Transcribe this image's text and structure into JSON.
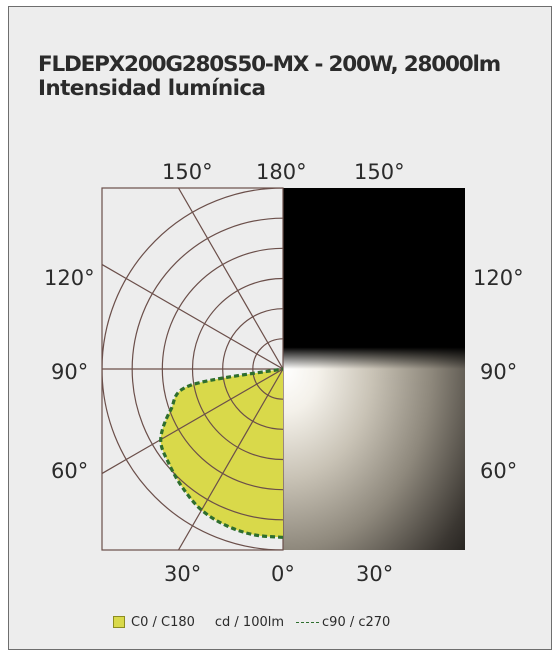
{
  "title": {
    "line1": "FLDEPX200G280S50-MX - 200W, 28000lm",
    "line2": "Intensidad lumínica"
  },
  "colors": {
    "background": "#ededed",
    "grid": "#6b4f4a",
    "c0_fill": "#d9d94a",
    "c90_line": "#2e6e2e",
    "beam_panel": "#000000"
  },
  "chart_data": {
    "type": "polar",
    "unit": "cd / 100lm",
    "angle_labels": {
      "top": [
        "150°",
        "180°",
        "150°"
      ],
      "left": [
        "120°",
        "90°",
        "60°"
      ],
      "right": [
        "120°",
        "90°",
        "60°"
      ],
      "bottom": [
        "30°",
        "0°",
        "30°"
      ]
    },
    "series": [
      {
        "name": "C0 / C180",
        "style": "filled",
        "angles_deg": [
          0,
          10,
          20,
          30,
          40,
          50,
          60,
          70,
          80,
          90
        ],
        "relative_intensity": [
          0.93,
          0.93,
          0.92,
          0.9,
          0.86,
          0.82,
          0.78,
          0.66,
          0.52,
          0
        ]
      },
      {
        "name": "c90 / c270",
        "style": "dashed",
        "angles_deg": [
          0,
          10,
          20,
          30,
          40,
          50,
          60,
          70,
          80,
          90
        ],
        "relative_intensity": [
          0.93,
          0.93,
          0.92,
          0.9,
          0.86,
          0.82,
          0.78,
          0.66,
          0.52,
          0
        ]
      }
    ],
    "rings": 6,
    "radial_lines_deg": [
      30,
      60,
      90,
      120,
      150
    ]
  },
  "legend": {
    "c0_label": "C0 / C180",
    "unit_label": "cd / 100lm",
    "c90_label": "c90 / c270"
  }
}
